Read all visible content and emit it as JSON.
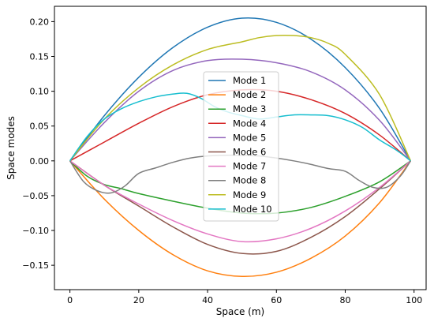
{
  "chart_data": {
    "type": "line",
    "title": "",
    "xlabel": "Space (m)",
    "ylabel": "Space modes",
    "xlim": [
      -4.5,
      103.5
    ],
    "ylim": [
      -0.185,
      0.222
    ],
    "xticks": [
      0,
      20,
      40,
      60,
      80,
      100
    ],
    "yticks": [
      -0.15,
      -0.1,
      -0.05,
      0.0,
      0.05,
      0.1,
      0.15,
      0.2
    ],
    "xtick_labels": [
      "0",
      "20",
      "40",
      "60",
      "80",
      "100"
    ],
    "ytick_labels": [
      "−0.15",
      "−0.10",
      "−0.05",
      "0.00",
      "0.05",
      "0.10",
      "0.15",
      "0.20"
    ],
    "grid": false,
    "legend_position": "center",
    "series": [
      {
        "name": "Mode 1",
        "color": "#1f77b4",
        "x": [
          0,
          10,
          20,
          30,
          40,
          50,
          60,
          70,
          80,
          90,
          99
        ],
        "y": [
          0,
          0.065,
          0.12,
          0.163,
          0.192,
          0.205,
          0.199,
          0.175,
          0.134,
          0.075,
          0
        ]
      },
      {
        "name": "Mode 2",
        "color": "#ff7f0e",
        "x": [
          0,
          10,
          20,
          30,
          40,
          50,
          60,
          70,
          80,
          90,
          99
        ],
        "y": [
          0,
          -0.055,
          -0.1,
          -0.135,
          -0.158,
          -0.166,
          -0.16,
          -0.14,
          -0.108,
          -0.06,
          0
        ]
      },
      {
        "name": "Mode 3",
        "color": "#2ca02c",
        "x": [
          0,
          5,
          10,
          15,
          20,
          30,
          40,
          50,
          60,
          70,
          80,
          90,
          99
        ],
        "y": [
          0,
          -0.022,
          -0.034,
          -0.04,
          -0.047,
          -0.058,
          -0.068,
          -0.075,
          -0.075,
          -0.067,
          -0.051,
          -0.03,
          0
        ]
      },
      {
        "name": "Mode 4",
        "color": "#d62728",
        "x": [
          0,
          10,
          20,
          30,
          40,
          50,
          60,
          70,
          80,
          90,
          99
        ],
        "y": [
          0,
          0.027,
          0.054,
          0.078,
          0.095,
          0.102,
          0.1,
          0.088,
          0.068,
          0.037,
          0
        ]
      },
      {
        "name": "Mode 5",
        "color": "#9467bd",
        "x": [
          0,
          10,
          20,
          30,
          40,
          50,
          60,
          70,
          80,
          90,
          99
        ],
        "y": [
          0,
          0.055,
          0.1,
          0.13,
          0.144,
          0.146,
          0.141,
          0.128,
          0.102,
          0.058,
          0
        ]
      },
      {
        "name": "Mode 6",
        "color": "#8c564b",
        "x": [
          0,
          10,
          20,
          30,
          40,
          50,
          60,
          70,
          80,
          90,
          99
        ],
        "y": [
          0,
          -0.035,
          -0.065,
          -0.095,
          -0.12,
          -0.133,
          -0.13,
          -0.11,
          -0.08,
          -0.04,
          0
        ]
      },
      {
        "name": "Mode 7",
        "color": "#e377c2",
        "x": [
          0,
          10,
          20,
          30,
          40,
          50,
          60,
          70,
          80,
          90,
          99
        ],
        "y": [
          0,
          -0.035,
          -0.062,
          -0.086,
          -0.105,
          -0.116,
          -0.112,
          -0.097,
          -0.072,
          -0.038,
          0
        ]
      },
      {
        "name": "Mode 8",
        "color": "#7f7f7f",
        "x": [
          0,
          4,
          8,
          12,
          16,
          20,
          25,
          30,
          35,
          40,
          45,
          50,
          55,
          60,
          65,
          70,
          75,
          80,
          84,
          88,
          92,
          96,
          99
        ],
        "y": [
          0,
          -0.03,
          -0.043,
          -0.046,
          -0.036,
          -0.018,
          -0.01,
          -0.002,
          0.004,
          0.007,
          0.008,
          0.008,
          0.007,
          0.004,
          0,
          -0.005,
          -0.011,
          -0.015,
          -0.028,
          -0.038,
          -0.038,
          -0.022,
          0
        ]
      },
      {
        "name": "Mode 9",
        "color": "#bcbd22",
        "x": [
          0,
          10,
          20,
          30,
          40,
          50,
          55,
          60,
          65,
          70,
          75,
          80,
          90,
          99
        ],
        "y": [
          0,
          0.06,
          0.105,
          0.138,
          0.16,
          0.171,
          0.177,
          0.18,
          0.18,
          0.177,
          0.169,
          0.153,
          0.095,
          0
        ]
      },
      {
        "name": "Mode 10",
        "color": "#17becf",
        "x": [
          0,
          5,
          10,
          15,
          20,
          25,
          30,
          34,
          38,
          42,
          46,
          50,
          55,
          60,
          65,
          70,
          75,
          80,
          85,
          90,
          95,
          99
        ],
        "y": [
          0,
          0.035,
          0.06,
          0.075,
          0.085,
          0.092,
          0.096,
          0.097,
          0.09,
          0.078,
          0.07,
          0.065,
          0.06,
          0.063,
          0.066,
          0.066,
          0.065,
          0.059,
          0.048,
          0.03,
          0.015,
          0
        ]
      }
    ]
  }
}
